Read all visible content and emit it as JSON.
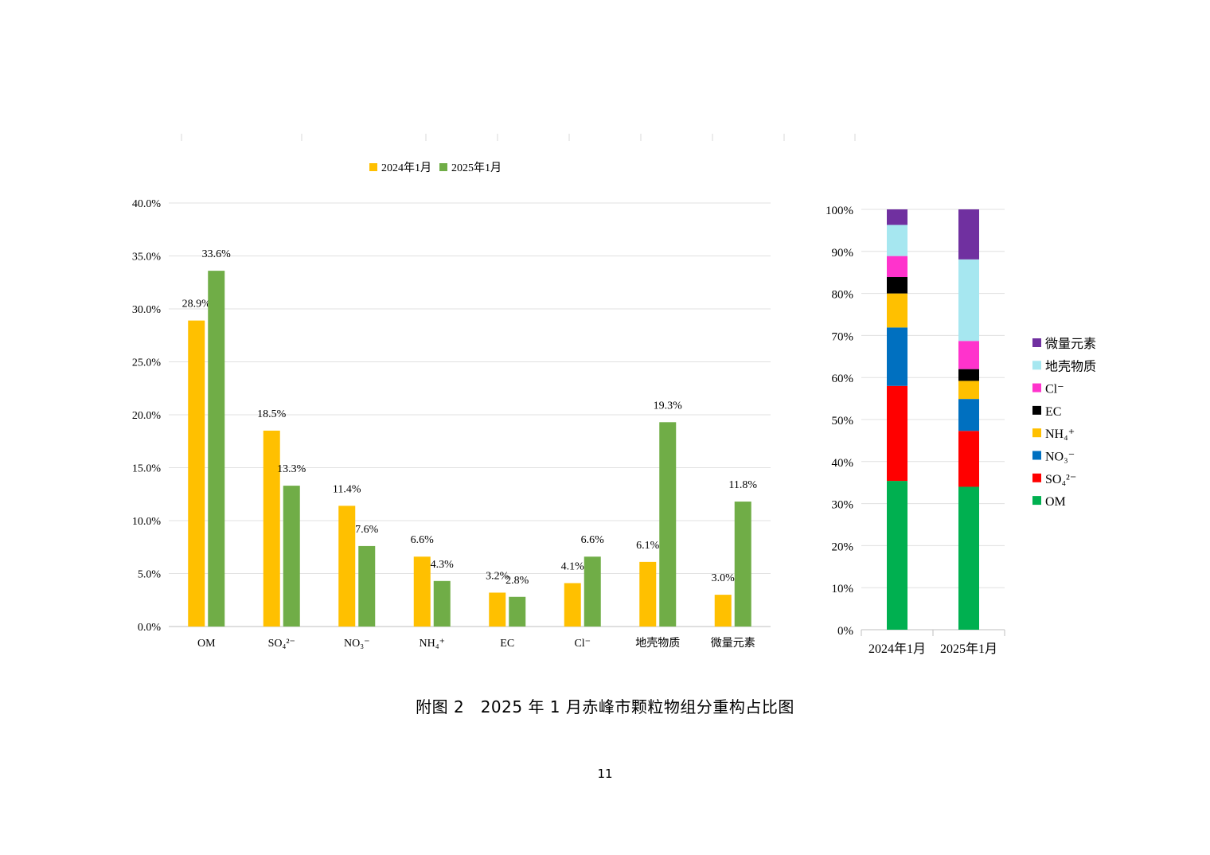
{
  "chart_data": [
    {
      "type": "bar",
      "categories": [
        "OM",
        "SO₄²⁻",
        "NO₃⁻",
        "NH₄⁺",
        "EC",
        "Cl⁻",
        "地壳物质",
        "微量元素"
      ],
      "series": [
        {
          "name": "2024年1月",
          "color": "#FFC000",
          "values": [
            28.9,
            18.5,
            11.4,
            6.6,
            3.2,
            4.1,
            6.1,
            3.0
          ]
        },
        {
          "name": "2025年1月",
          "color": "#70AD47",
          "values": [
            33.6,
            13.3,
            7.6,
            4.3,
            2.8,
            6.6,
            19.3,
            11.8
          ]
        }
      ],
      "value_labels": [
        [
          "28.9%",
          "18.5%",
          "11.4%",
          "6.6%",
          "3.2%",
          "4.1%",
          "6.1%",
          "3.0%"
        ],
        [
          "33.6%",
          "13.3%",
          "7.6%",
          "4.3%",
          "2.8%",
          "6.6%",
          "19.3%",
          "11.8%"
        ]
      ],
      "yticks": [
        "0.0%",
        "5.0%",
        "10.0%",
        "15.0%",
        "20.0%",
        "25.0%",
        "30.0%",
        "35.0%",
        "40.0%"
      ],
      "ylim": [
        0,
        40
      ],
      "legend_position": "top",
      "grid": true
    },
    {
      "type": "bar",
      "stacked": true,
      "categories": [
        "2024年1月",
        "2025年1月"
      ],
      "series": [
        {
          "name": "OM",
          "color": "#00B050",
          "values": [
            35.4,
            34.0
          ]
        },
        {
          "name": "SO₄²⁻",
          "color": "#FF0000",
          "values": [
            22.6,
            13.3
          ]
        },
        {
          "name": "NO₃⁻",
          "color": "#0070C0",
          "values": [
            13.9,
            7.6
          ]
        },
        {
          "name": "NH₄⁺",
          "color": "#FFC000",
          "values": [
            8.1,
            4.3
          ]
        },
        {
          "name": "EC",
          "color": "#000000",
          "values": [
            3.9,
            2.8
          ]
        },
        {
          "name": "Cl⁻",
          "color": "#FF33CC",
          "values": [
            5.0,
            6.7
          ]
        },
        {
          "name": "地壳物质",
          "color": "#A6E7F0",
          "values": [
            7.4,
            19.4
          ]
        },
        {
          "name": "微量元素",
          "color": "#7030A0",
          "values": [
            3.7,
            11.9
          ]
        }
      ],
      "yticks": [
        "0%",
        "10%",
        "20%",
        "30%",
        "40%",
        "50%",
        "60%",
        "70%",
        "80%",
        "90%",
        "100%"
      ],
      "ylim": [
        0,
        100
      ],
      "legend_position": "right",
      "grid": true
    }
  ],
  "caption": "附图 2　2025 年 1 月赤峰市颗粒物组分重构占比图",
  "page_number": "11"
}
